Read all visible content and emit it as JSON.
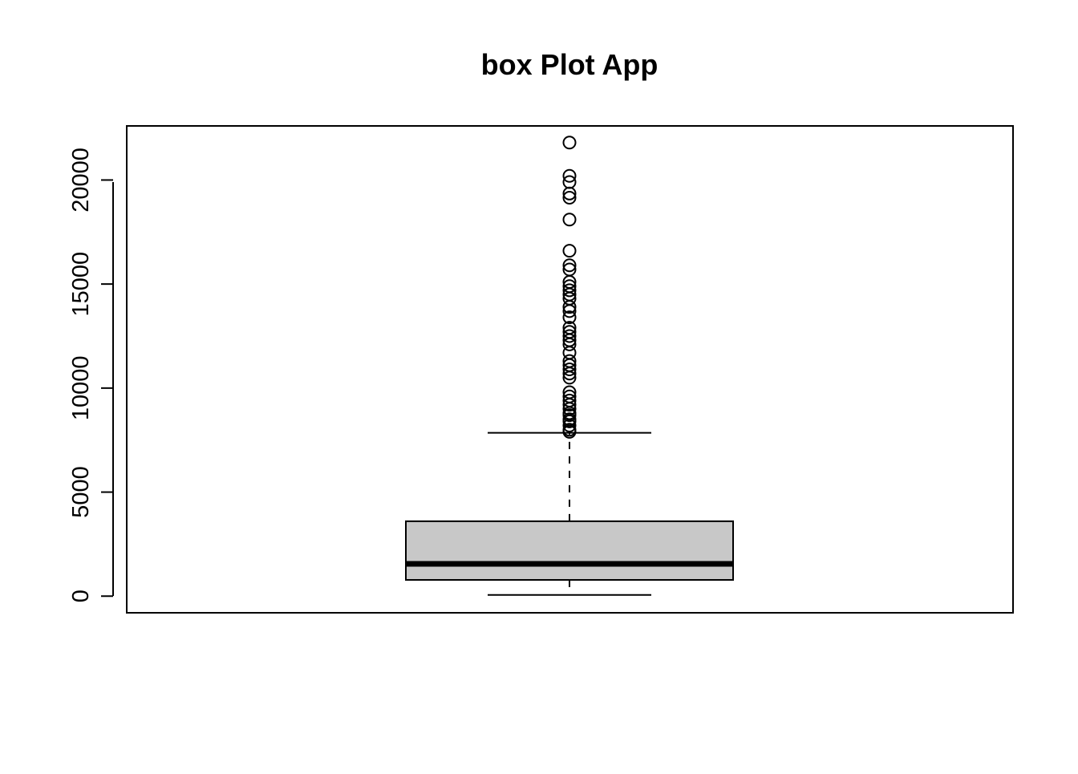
{
  "chart_data": {
    "type": "box",
    "title": "box Plot App",
    "xlabel": "",
    "ylabel": "",
    "ylim": [
      -800,
      22600
    ],
    "y_ticks": [
      0,
      5000,
      10000,
      15000,
      20000
    ],
    "y_tick_labels": [
      "0",
      "5000",
      "10000",
      "15000",
      "20000"
    ],
    "grid": false,
    "box": {
      "whisker_low": 60,
      "q1": 780,
      "median": 1550,
      "q3": 3600,
      "whisker_high": 7850,
      "fill_color": "#c8c8c8"
    },
    "outliers": [
      21800,
      20200,
      19900,
      19350,
      19150,
      18100,
      16600,
      15900,
      15700,
      15100,
      14900,
      14700,
      14500,
      14300,
      13900,
      13700,
      13400,
      12900,
      12700,
      12500,
      12300,
      12100,
      11700,
      11300,
      11100,
      10900,
      10700,
      10500,
      9800,
      9600,
      9400,
      9200,
      9000,
      8800,
      8700,
      8500,
      8400,
      8200,
      8000,
      7900
    ]
  }
}
